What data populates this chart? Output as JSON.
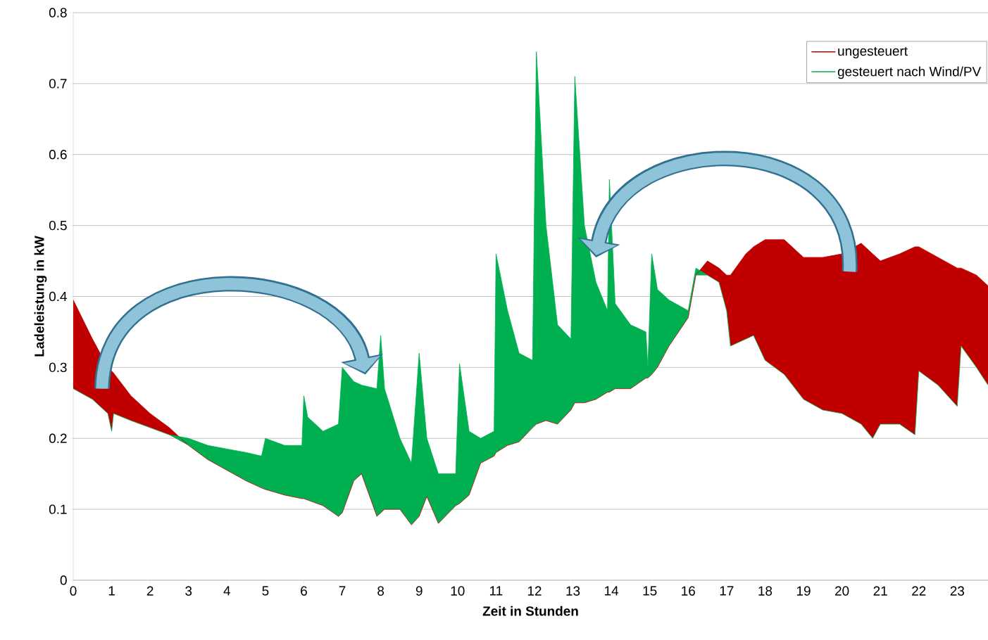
{
  "chart_data": {
    "type": "area",
    "xlabel": "Zeit in Stunden",
    "ylabel": "Ladeleistung in kW",
    "x": [
      0,
      0.5,
      0.9,
      1.0,
      1.05,
      1.5,
      2,
      2.5,
      3,
      3.5,
      4,
      4.5,
      4.9,
      5.0,
      5.5,
      5.95,
      6.0,
      6.1,
      6.5,
      6.9,
      7.0,
      7.3,
      7.5,
      7.9,
      8.0,
      8.1,
      8.5,
      8.8,
      9.0,
      9.2,
      9.5,
      9.95,
      10.05,
      10.3,
      10.6,
      10.95,
      11.0,
      11.3,
      11.6,
      11.95,
      12.05,
      12.3,
      12.6,
      12.95,
      13.05,
      13.3,
      13.6,
      13.9,
      13.95,
      14.1,
      14.5,
      14.9,
      14.95,
      15.05,
      15.2,
      15.5,
      16.0,
      16.2,
      16.5,
      16.8,
      17.0,
      17.1,
      17.5,
      17.7,
      18.0,
      18.5,
      19,
      19.5,
      20,
      20.5,
      20.8,
      21.0,
      21.5,
      21.9,
      22.0,
      22.5,
      23.0,
      23.1,
      23.5,
      23.8
    ],
    "series": [
      {
        "name": "ungesteuert",
        "color": "#c00000",
        "values": [
          0.395,
          0.34,
          0.3,
          0.295,
          0.292,
          0.26,
          0.235,
          0.215,
          0.19,
          0.17,
          0.155,
          0.14,
          0.13,
          0.128,
          0.12,
          0.115,
          0.115,
          0.113,
          0.105,
          0.09,
          0.095,
          0.14,
          0.15,
          0.09,
          0.095,
          0.1,
          0.1,
          0.078,
          0.09,
          0.118,
          0.08,
          0.105,
          0.108,
          0.12,
          0.165,
          0.175,
          0.18,
          0.19,
          0.195,
          0.215,
          0.22,
          0.225,
          0.22,
          0.24,
          0.25,
          0.25,
          0.255,
          0.265,
          0.265,
          0.27,
          0.27,
          0.285,
          0.285,
          0.29,
          0.3,
          0.33,
          0.37,
          0.43,
          0.45,
          0.44,
          0.43,
          0.43,
          0.46,
          0.47,
          0.48,
          0.48,
          0.455,
          0.455,
          0.46,
          0.475,
          0.46,
          0.45,
          0.46,
          0.47,
          0.47,
          0.455,
          0.44,
          0.44,
          0.43,
          0.415
        ]
      },
      {
        "name": "gesteuert nach Wind/PV",
        "color": "#00b050",
        "values": [
          0.27,
          0.255,
          0.235,
          0.21,
          0.235,
          0.225,
          0.215,
          0.205,
          0.2,
          0.19,
          0.185,
          0.18,
          0.175,
          0.2,
          0.19,
          0.19,
          0.26,
          0.23,
          0.21,
          0.22,
          0.3,
          0.28,
          0.275,
          0.27,
          0.345,
          0.27,
          0.2,
          0.165,
          0.32,
          0.2,
          0.15,
          0.15,
          0.305,
          0.21,
          0.2,
          0.21,
          0.46,
          0.38,
          0.32,
          0.31,
          0.745,
          0.5,
          0.36,
          0.34,
          0.71,
          0.5,
          0.42,
          0.38,
          0.565,
          0.39,
          0.36,
          0.35,
          0.3,
          0.46,
          0.41,
          0.395,
          0.38,
          0.44,
          0.43,
          0.42,
          0.38,
          0.33,
          0.34,
          0.345,
          0.31,
          0.29,
          0.255,
          0.24,
          0.235,
          0.22,
          0.2,
          0.22,
          0.22,
          0.205,
          0.295,
          0.275,
          0.245,
          0.33,
          0.3,
          0.275
        ]
      }
    ],
    "xlim": [
      0,
      23.8
    ],
    "ylim": [
      0,
      0.8
    ],
    "xticks": [
      0,
      1,
      2,
      3,
      4,
      5,
      6,
      7,
      8,
      9,
      10,
      11,
      12,
      13,
      14,
      15,
      16,
      17,
      18,
      19,
      20,
      21,
      22,
      23
    ],
    "yticks": [
      0,
      0.1,
      0.2,
      0.3,
      0.4,
      0.5,
      0.6,
      0.7,
      0.8
    ],
    "grid": "y",
    "legend": "top right"
  }
}
